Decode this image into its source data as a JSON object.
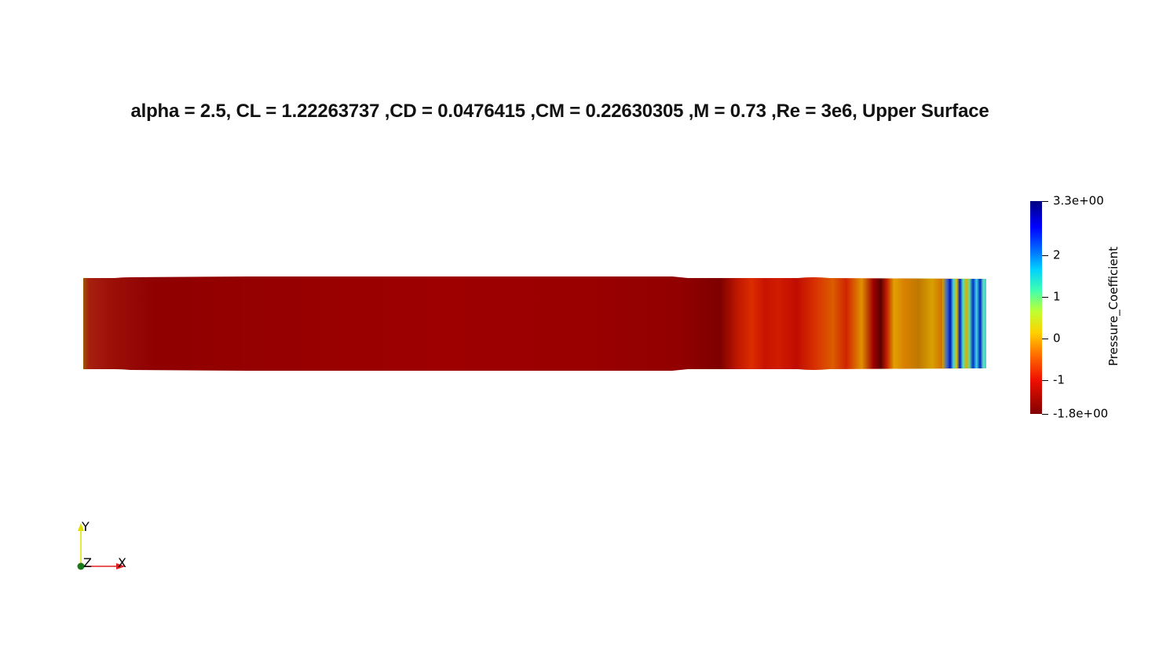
{
  "plot_title": "alpha = 2.5, CL = 1.22263737 ,CD = 0.0476415 ,CM = 0.22630305 ,M = 0.73 ,Re = 3e6, Upper Surface",
  "colorbar": {
    "title": "Pressure_Coefficient",
    "min": -1.8,
    "max": 3.3,
    "colormap": "jet",
    "ticks": [
      {
        "value": 3.3,
        "label": "3.3e+00"
      },
      {
        "value": 2,
        "label": "2"
      },
      {
        "value": 1,
        "label": "1"
      },
      {
        "value": 0,
        "label": "0"
      },
      {
        "value": -1,
        "label": "-1"
      },
      {
        "value": -1.8,
        "label": "-1.8e+00"
      }
    ]
  },
  "orientation_axes": {
    "y_label": "Y",
    "z_label": "Z",
    "x_label": "X",
    "y_color": "#e0e000",
    "x_color": "#e02020",
    "z_color": "#1a7a1a"
  },
  "surface_colors": {
    "dark_red": "#8b0000",
    "red": "#a00000",
    "orange_red": "#d02000",
    "orange": "#d85a00",
    "yellow_orange": "#d8a000",
    "blue": "#0020c0",
    "cyan": "#40d0c0"
  }
}
